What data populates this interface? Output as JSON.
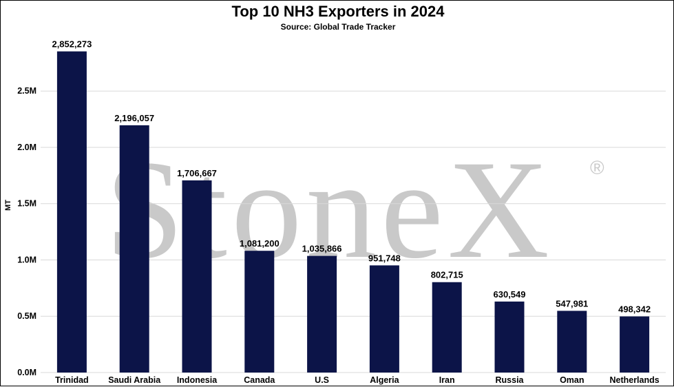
{
  "watermark": {
    "text": "StoneX",
    "registered_mark": "®",
    "color": "#c9c9c9"
  },
  "chart_data": {
    "type": "bar",
    "title": "Top 10 NH3 Exporters in 2024",
    "subtitle": "Source: Global Trade Tracker",
    "xlabel": "",
    "ylabel": "MT",
    "ylim": [
      0,
      2850000
    ],
    "yticks": [
      0,
      500000,
      1000000,
      1500000,
      2000000,
      2500000
    ],
    "ytick_labels": [
      "0.0M",
      "0.5M",
      "1.0M",
      "1.5M",
      "2.0M",
      "2.5M"
    ],
    "grid": true,
    "bar_color": "#0c1448",
    "categories": [
      "Trinidad",
      "Saudi Arabia",
      "Indonesia",
      "Canada",
      "U.S",
      "Algeria",
      "Iran",
      "Russia",
      "Oman",
      "Netherlands"
    ],
    "values": [
      2852273,
      2196057,
      1706667,
      1081200,
      1035866,
      951748,
      802715,
      630549,
      547981,
      498342
    ],
    "data_labels": [
      "2,852,273",
      "2,196,057",
      "1,706,667",
      "1,081,200",
      "1,035,866",
      "951,748",
      "802,715",
      "630,549",
      "547,981",
      "498,342"
    ]
  }
}
